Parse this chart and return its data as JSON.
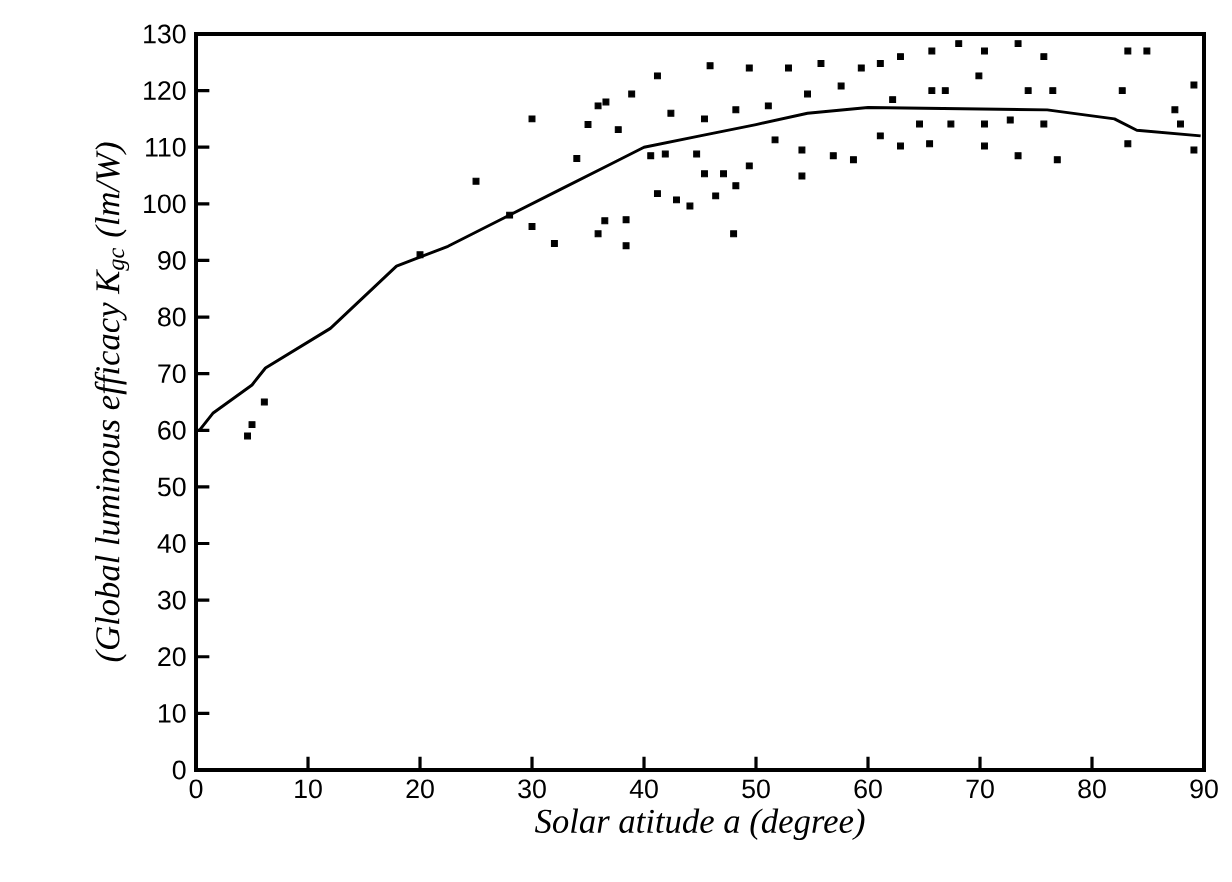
{
  "chart_data": {
    "type": "scatter",
    "xlabel": "Solar atitude a (degree)",
    "ylabel": "(Global luminous efficacy K$_{gc}$ (lm/W)",
    "xlim": [
      0,
      90
    ],
    "ylim": [
      0,
      130
    ],
    "xticks": [
      0,
      10,
      20,
      30,
      40,
      50,
      60,
      70,
      80,
      90
    ],
    "yticks": [
      0,
      10,
      20,
      30,
      40,
      50,
      60,
      70,
      80,
      90,
      100,
      110,
      120,
      130
    ],
    "grid": false,
    "series": [
      {
        "color": "#000000",
        "marker": "square",
        "x": [
          4.6,
          5,
          6.1,
          20,
          25,
          28,
          30,
          30,
          32,
          34,
          35,
          36.6,
          36.5,
          41.2,
          45.9,
          49.4,
          52.9,
          55.8,
          59.4,
          61.1,
          62.9,
          65.7,
          68.1,
          70.4,
          73.4,
          75.7,
          83.2,
          84.9,
          89.1,
          69.9,
          74.3,
          76.5,
          82.7,
          66.9,
          65.7,
          38.9,
          42.4,
          45.4,
          48.2,
          51.1,
          54.6,
          57.6,
          62.2,
          64.6,
          67.4,
          70.4,
          72.7,
          75.7,
          87.4,
          87.9,
          89.1,
          83.2,
          76.9,
          73.4,
          70.4,
          65.5,
          62.9,
          61.1,
          58.7,
          56.9,
          54.1,
          51.7,
          49.4,
          48.2,
          46.4,
          44.1,
          42.9,
          41.2,
          38.4,
          38.4,
          35.9,
          48,
          54.1,
          40.6,
          37.7,
          35.9,
          41.9,
          44.7,
          47.1,
          45.4
        ],
        "values": [
          59,
          61,
          65,
          91,
          104,
          98,
          115,
          96,
          93,
          108,
          114,
          118,
          97,
          122.6,
          124.4,
          124,
          124,
          124.8,
          124,
          124.8,
          126,
          127,
          128.3,
          127,
          128.3,
          126,
          127,
          127,
          121,
          122.6,
          120,
          120,
          120,
          120,
          120,
          119.4,
          116,
          115,
          116.6,
          117.3,
          119.4,
          120.8,
          118.4,
          114.1,
          114.1,
          114.1,
          114.8,
          114.1,
          116.6,
          114.1,
          109.5,
          110.6,
          107.8,
          108.5,
          110.2,
          110.6,
          110.2,
          112,
          107.8,
          108.5,
          109.5,
          111.3,
          106.7,
          103.2,
          101.4,
          99.6,
          100.7,
          101.8,
          97.2,
          92.6,
          94.7,
          94.7,
          104.9,
          108.5,
          113.1,
          117.3,
          108.8,
          108.8,
          105.3,
          105.3
        ]
      },
      {
        "type": "line",
        "color": "#000000",
        "marker": "none",
        "line_style": "solid",
        "x": [
          0.3,
          1.5,
          5,
          6.2,
          12,
          17.9,
          22.5,
          27,
          32.5,
          37,
          40,
          45,
          50,
          54.6,
          60,
          76,
          82,
          84,
          89.7
        ],
        "values": [
          60,
          63,
          68,
          71,
          78,
          89,
          92.5,
          97,
          102.5,
          107,
          110,
          112,
          114,
          116,
          117,
          116.6,
          115,
          113,
          112
        ]
      }
    ]
  }
}
